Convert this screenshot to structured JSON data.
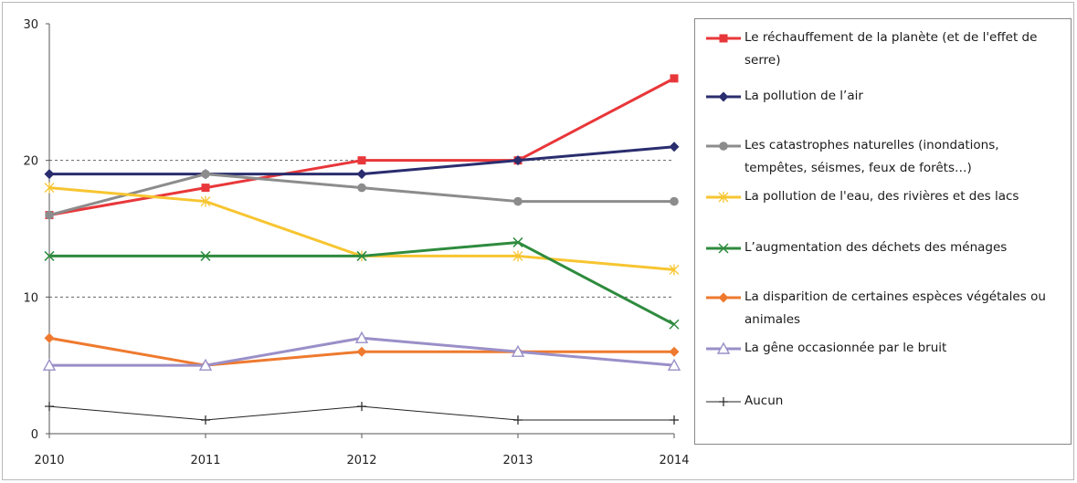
{
  "chart_data": {
    "type": "line",
    "title": "",
    "xlabel": "",
    "ylabel": "",
    "x": [
      "2010",
      "2011",
      "2012",
      "2013",
      "2014"
    ],
    "ylim": [
      0,
      30
    ],
    "yticks": [
      "0",
      "10",
      "20",
      "30"
    ],
    "grid": "dashed horizontal at 10 and 20",
    "legend_position": "right",
    "series": [
      {
        "name": "Le réchauffement de la planète (et de l'effet de serre)",
        "values": [
          16,
          18,
          20,
          20,
          26
        ],
        "color": "#e8373a",
        "marker": "square"
      },
      {
        "name": "La pollution de l’air",
        "values": [
          19,
          19,
          19,
          20,
          21
        ],
        "color": "#2a2d6e",
        "marker": "diamond"
      },
      {
        "name": "Les catastrophes naturelles (inondations, tempêtes, séismes, feux de forêts…)",
        "values": [
          16,
          19,
          18,
          17,
          17
        ],
        "color": "#8c8c8c",
        "marker": "circle"
      },
      {
        "name": "La pollution de l'eau, des rivières et des lacs",
        "values": [
          18,
          17,
          13,
          13,
          12
        ],
        "color": "#f7c531",
        "marker": "star"
      },
      {
        "name": "L’augmentation des déchets des ménages",
        "values": [
          13,
          13,
          13,
          14,
          8
        ],
        "color": "#2e8b3e",
        "marker": "x"
      },
      {
        "name": "La disparition de certaines espèces végétales ou animales",
        "values": [
          7,
          5,
          6,
          6,
          6
        ],
        "color": "#ee7a2f",
        "marker": "diamond"
      },
      {
        "name": "La gêne occasionnée par le bruit",
        "values": [
          5,
          5,
          7,
          6,
          5
        ],
        "color": "#9a8fc8",
        "marker": "triangle"
      },
      {
        "name": "Aucun",
        "values": [
          2,
          1,
          2,
          1,
          1
        ],
        "color": "#222222",
        "marker": "plus"
      }
    ]
  }
}
